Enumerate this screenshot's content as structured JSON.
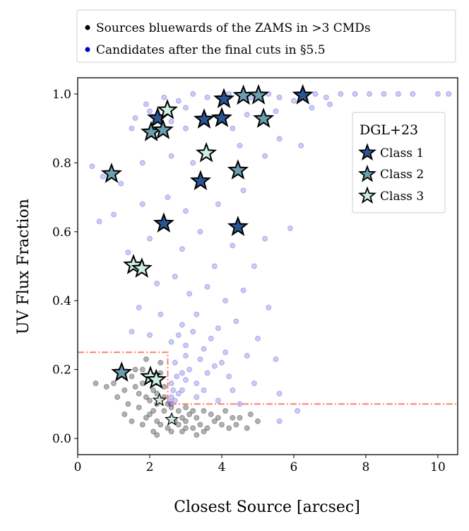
{
  "chart_data": {
    "type": "scatter",
    "xlabel": "Closest Source [arcsec]",
    "ylabel": "UV Flux Fraction",
    "xlim": [
      0,
      10.55
    ],
    "ylim": [
      -0.047,
      1.047
    ],
    "xticks": [
      0,
      2,
      4,
      6,
      8,
      10
    ],
    "yticks": [
      0.0,
      0.2,
      0.4,
      0.6,
      0.8,
      1.0
    ],
    "ytick_labels": [
      "0.0",
      "0.2",
      "0.4",
      "0.6",
      "0.8",
      "1.0"
    ],
    "top_legend": [
      {
        "label": "Sources bluewards of the ZAMS in >3 CMDs",
        "color": "#000000"
      },
      {
        "label": "Candidates after the final cuts in §5.5",
        "color": "#0000cc"
      }
    ],
    "star_legend": {
      "title": "DGL+23",
      "entries": [
        {
          "label": "Class 1",
          "color": "#2b5592"
        },
        {
          "label": "Class 2",
          "color": "#6a9fb0"
        },
        {
          "label": "Class 3",
          "color": "#cdeee0"
        }
      ]
    },
    "cut_lines": {
      "color": "#fa8072",
      "points": [
        [
          0,
          0.25
        ],
        [
          2.5,
          0.25
        ],
        [
          2.5,
          0.1
        ],
        [
          10.55,
          0.1
        ]
      ]
    },
    "series": [
      {
        "name": "Sources bluewards of the ZAMS in >3 CMDs",
        "color": "#000000",
        "points": [
          [
            0.5,
            0.16
          ],
          [
            0.8,
            0.15
          ],
          [
            1.0,
            0.16
          ],
          [
            1.3,
            0.14
          ],
          [
            1.6,
            0.15
          ],
          [
            1.8,
            0.2
          ],
          [
            1.4,
            0.1
          ],
          [
            1.7,
            0.09
          ],
          [
            1.9,
            0.12
          ],
          [
            2.1,
            0.14
          ],
          [
            2.3,
            0.19
          ],
          [
            2.0,
            0.07
          ],
          [
            2.2,
            0.05
          ],
          [
            2.4,
            0.08
          ],
          [
            2.6,
            0.06
          ],
          [
            2.8,
            0.04
          ],
          [
            3.0,
            0.05
          ],
          [
            3.2,
            0.03
          ],
          [
            3.4,
            0.04
          ],
          [
            3.6,
            0.03
          ],
          [
            3.8,
            0.05
          ],
          [
            4.0,
            0.04
          ],
          [
            4.2,
            0.03
          ],
          [
            4.5,
            0.06
          ],
          [
            4.8,
            0.07
          ],
          [
            1.5,
            0.05
          ],
          [
            1.8,
            0.04
          ],
          [
            2.1,
            0.02
          ],
          [
            2.5,
            0.03
          ],
          [
            2.9,
            0.02
          ],
          [
            3.3,
            0.06
          ],
          [
            3.7,
            0.07
          ],
          [
            4.1,
            0.08
          ],
          [
            2.2,
            0.1
          ],
          [
            2.4,
            0.12
          ],
          [
            2.0,
            0.17
          ],
          [
            1.6,
            0.2
          ],
          [
            1.2,
            0.2
          ],
          [
            1.9,
            0.23
          ],
          [
            2.3,
            0.22
          ],
          [
            2.6,
            0.09
          ],
          [
            2.8,
            0.08
          ],
          [
            3.0,
            0.09
          ],
          [
            3.1,
            0.07
          ],
          [
            2.7,
            0.05
          ],
          [
            2.3,
            0.04
          ],
          [
            1.9,
            0.06
          ],
          [
            3.5,
            0.08
          ],
          [
            3.9,
            0.06
          ],
          [
            4.4,
            0.04
          ],
          [
            4.7,
            0.03
          ],
          [
            2.0,
            0.11
          ],
          [
            1.7,
            0.13
          ],
          [
            2.4,
            0.15
          ],
          [
            2.2,
            0.01
          ],
          [
            3.5,
            0.02
          ],
          [
            1.3,
            0.07
          ],
          [
            5.0,
            0.05
          ],
          [
            2.9,
            0.06
          ],
          [
            3.2,
            0.08
          ],
          [
            1.1,
            0.12
          ],
          [
            1.5,
            0.18
          ],
          [
            2.6,
            0.02
          ],
          [
            3.0,
            0.03
          ],
          [
            3.3,
            0.01
          ],
          [
            4.3,
            0.06
          ],
          [
            2.1,
            0.08
          ],
          [
            2.5,
            0.1
          ],
          [
            1.8,
            0.16
          ],
          [
            2.2,
            0.13
          ]
        ]
      },
      {
        "name": "Candidates after the final cuts in §5.5",
        "color": "#0000cc",
        "points": [
          [
            2.4,
            0.99
          ],
          [
            2.8,
            0.98
          ],
          [
            3.2,
            1.0
          ],
          [
            3.6,
            0.99
          ],
          [
            4.2,
            1.0
          ],
          [
            4.8,
            0.99
          ],
          [
            5.3,
            1.0
          ],
          [
            5.6,
            0.99
          ],
          [
            6.0,
            0.98
          ],
          [
            6.6,
            1.0
          ],
          [
            6.9,
            0.99
          ],
          [
            7.3,
            1.0
          ],
          [
            7.7,
            1.0
          ],
          [
            8.1,
            1.0
          ],
          [
            8.5,
            1.0
          ],
          [
            8.9,
            1.0
          ],
          [
            9.3,
            1.0
          ],
          [
            10.0,
            1.0
          ],
          [
            10.3,
            1.0
          ],
          [
            7.0,
            0.97
          ],
          [
            6.5,
            0.96
          ],
          [
            5.5,
            0.95
          ],
          [
            3.0,
            0.96
          ],
          [
            1.9,
            0.97
          ],
          [
            1.6,
            0.93
          ],
          [
            1.5,
            0.9
          ],
          [
            2.0,
            0.95
          ],
          [
            2.6,
            0.92
          ],
          [
            3.0,
            0.9
          ],
          [
            4.3,
            0.9
          ],
          [
            4.7,
            0.94
          ],
          [
            5.6,
            0.87
          ],
          [
            6.2,
            0.85
          ],
          [
            5.2,
            0.82
          ],
          [
            4.5,
            0.85
          ],
          [
            3.2,
            0.8
          ],
          [
            2.6,
            0.82
          ],
          [
            1.8,
            0.8
          ],
          [
            0.4,
            0.79
          ],
          [
            0.7,
            0.76
          ],
          [
            1.2,
            0.74
          ],
          [
            0.6,
            0.63
          ],
          [
            1.0,
            0.65
          ],
          [
            1.8,
            0.68
          ],
          [
            2.5,
            0.7
          ],
          [
            3.0,
            0.66
          ],
          [
            3.9,
            0.68
          ],
          [
            4.6,
            0.72
          ],
          [
            5.2,
            0.58
          ],
          [
            5.9,
            0.61
          ],
          [
            1.4,
            0.54
          ],
          [
            2.0,
            0.58
          ],
          [
            2.9,
            0.55
          ],
          [
            3.4,
            0.6
          ],
          [
            3.8,
            0.5
          ],
          [
            4.3,
            0.56
          ],
          [
            4.9,
            0.5
          ],
          [
            2.2,
            0.45
          ],
          [
            2.7,
            0.47
          ],
          [
            3.1,
            0.42
          ],
          [
            3.6,
            0.44
          ],
          [
            4.1,
            0.4
          ],
          [
            4.6,
            0.43
          ],
          [
            5.3,
            0.38
          ],
          [
            1.7,
            0.38
          ],
          [
            2.3,
            0.36
          ],
          [
            2.9,
            0.33
          ],
          [
            3.3,
            0.36
          ],
          [
            3.9,
            0.32
          ],
          [
            4.4,
            0.34
          ],
          [
            5.0,
            0.29
          ],
          [
            1.5,
            0.31
          ],
          [
            2.0,
            0.3
          ],
          [
            2.6,
            0.28
          ],
          [
            3.0,
            0.27
          ],
          [
            3.5,
            0.26
          ],
          [
            4.1,
            0.25
          ],
          [
            4.7,
            0.24
          ],
          [
            5.5,
            0.23
          ],
          [
            2.7,
            0.22
          ],
          [
            3.1,
            0.2
          ],
          [
            3.6,
            0.19
          ],
          [
            4.2,
            0.18
          ],
          [
            4.9,
            0.16
          ],
          [
            5.6,
            0.13
          ],
          [
            2.6,
            0.16
          ],
          [
            2.9,
            0.14
          ],
          [
            3.3,
            0.12
          ],
          [
            3.9,
            0.11
          ],
          [
            4.5,
            0.1
          ],
          [
            2.6,
            0.12
          ],
          [
            2.7,
            0.11
          ],
          [
            2.8,
            0.13
          ],
          [
            3.0,
            0.17
          ],
          [
            3.4,
            0.23
          ],
          [
            2.8,
            0.3
          ],
          [
            3.2,
            0.31
          ],
          [
            3.7,
            0.29
          ],
          [
            4.0,
            0.22
          ],
          [
            6.1,
            0.08
          ],
          [
            5.6,
            0.05
          ],
          [
            2.55,
            0.105
          ],
          [
            2.6,
            0.1
          ],
          [
            2.65,
            0.14
          ],
          [
            2.75,
            0.18
          ],
          [
            3.0,
            0.24
          ],
          [
            3.3,
            0.16
          ],
          [
            3.5,
            0.14
          ],
          [
            2.9,
            0.19
          ],
          [
            3.8,
            0.21
          ],
          [
            4.3,
            0.14
          ]
        ]
      },
      {
        "name": "Class 1",
        "color": "#2b5592",
        "marker": "star",
        "points": [
          [
            2.22,
            0.93
          ],
          [
            4.06,
            0.985
          ],
          [
            4.0,
            0.93
          ],
          [
            3.51,
            0.926
          ],
          [
            6.25,
            0.996
          ],
          [
            3.41,
            0.747
          ],
          [
            2.39,
            0.624
          ],
          [
            4.45,
            0.614
          ]
        ]
      },
      {
        "name": "Class 2",
        "color": "#6a9fb0",
        "marker": "star",
        "points": [
          [
            4.6,
            0.995
          ],
          [
            5.02,
            0.996
          ],
          [
            5.16,
            0.928
          ],
          [
            2.04,
            0.889
          ],
          [
            2.37,
            0.895
          ],
          [
            0.94,
            0.768
          ],
          [
            4.45,
            0.778
          ],
          [
            1.22,
            0.191
          ]
        ]
      },
      {
        "name": "Class 3",
        "color": "#cdeee0",
        "marker": "star",
        "points": [
          [
            2.49,
            0.953
          ],
          [
            3.57,
            0.828
          ],
          [
            1.55,
            0.503
          ],
          [
            1.78,
            0.493
          ],
          [
            2.02,
            0.179
          ],
          [
            2.18,
            0.17
          ],
          [
            2.27,
            0.111
          ],
          [
            2.61,
            0.055
          ]
        ]
      }
    ]
  }
}
